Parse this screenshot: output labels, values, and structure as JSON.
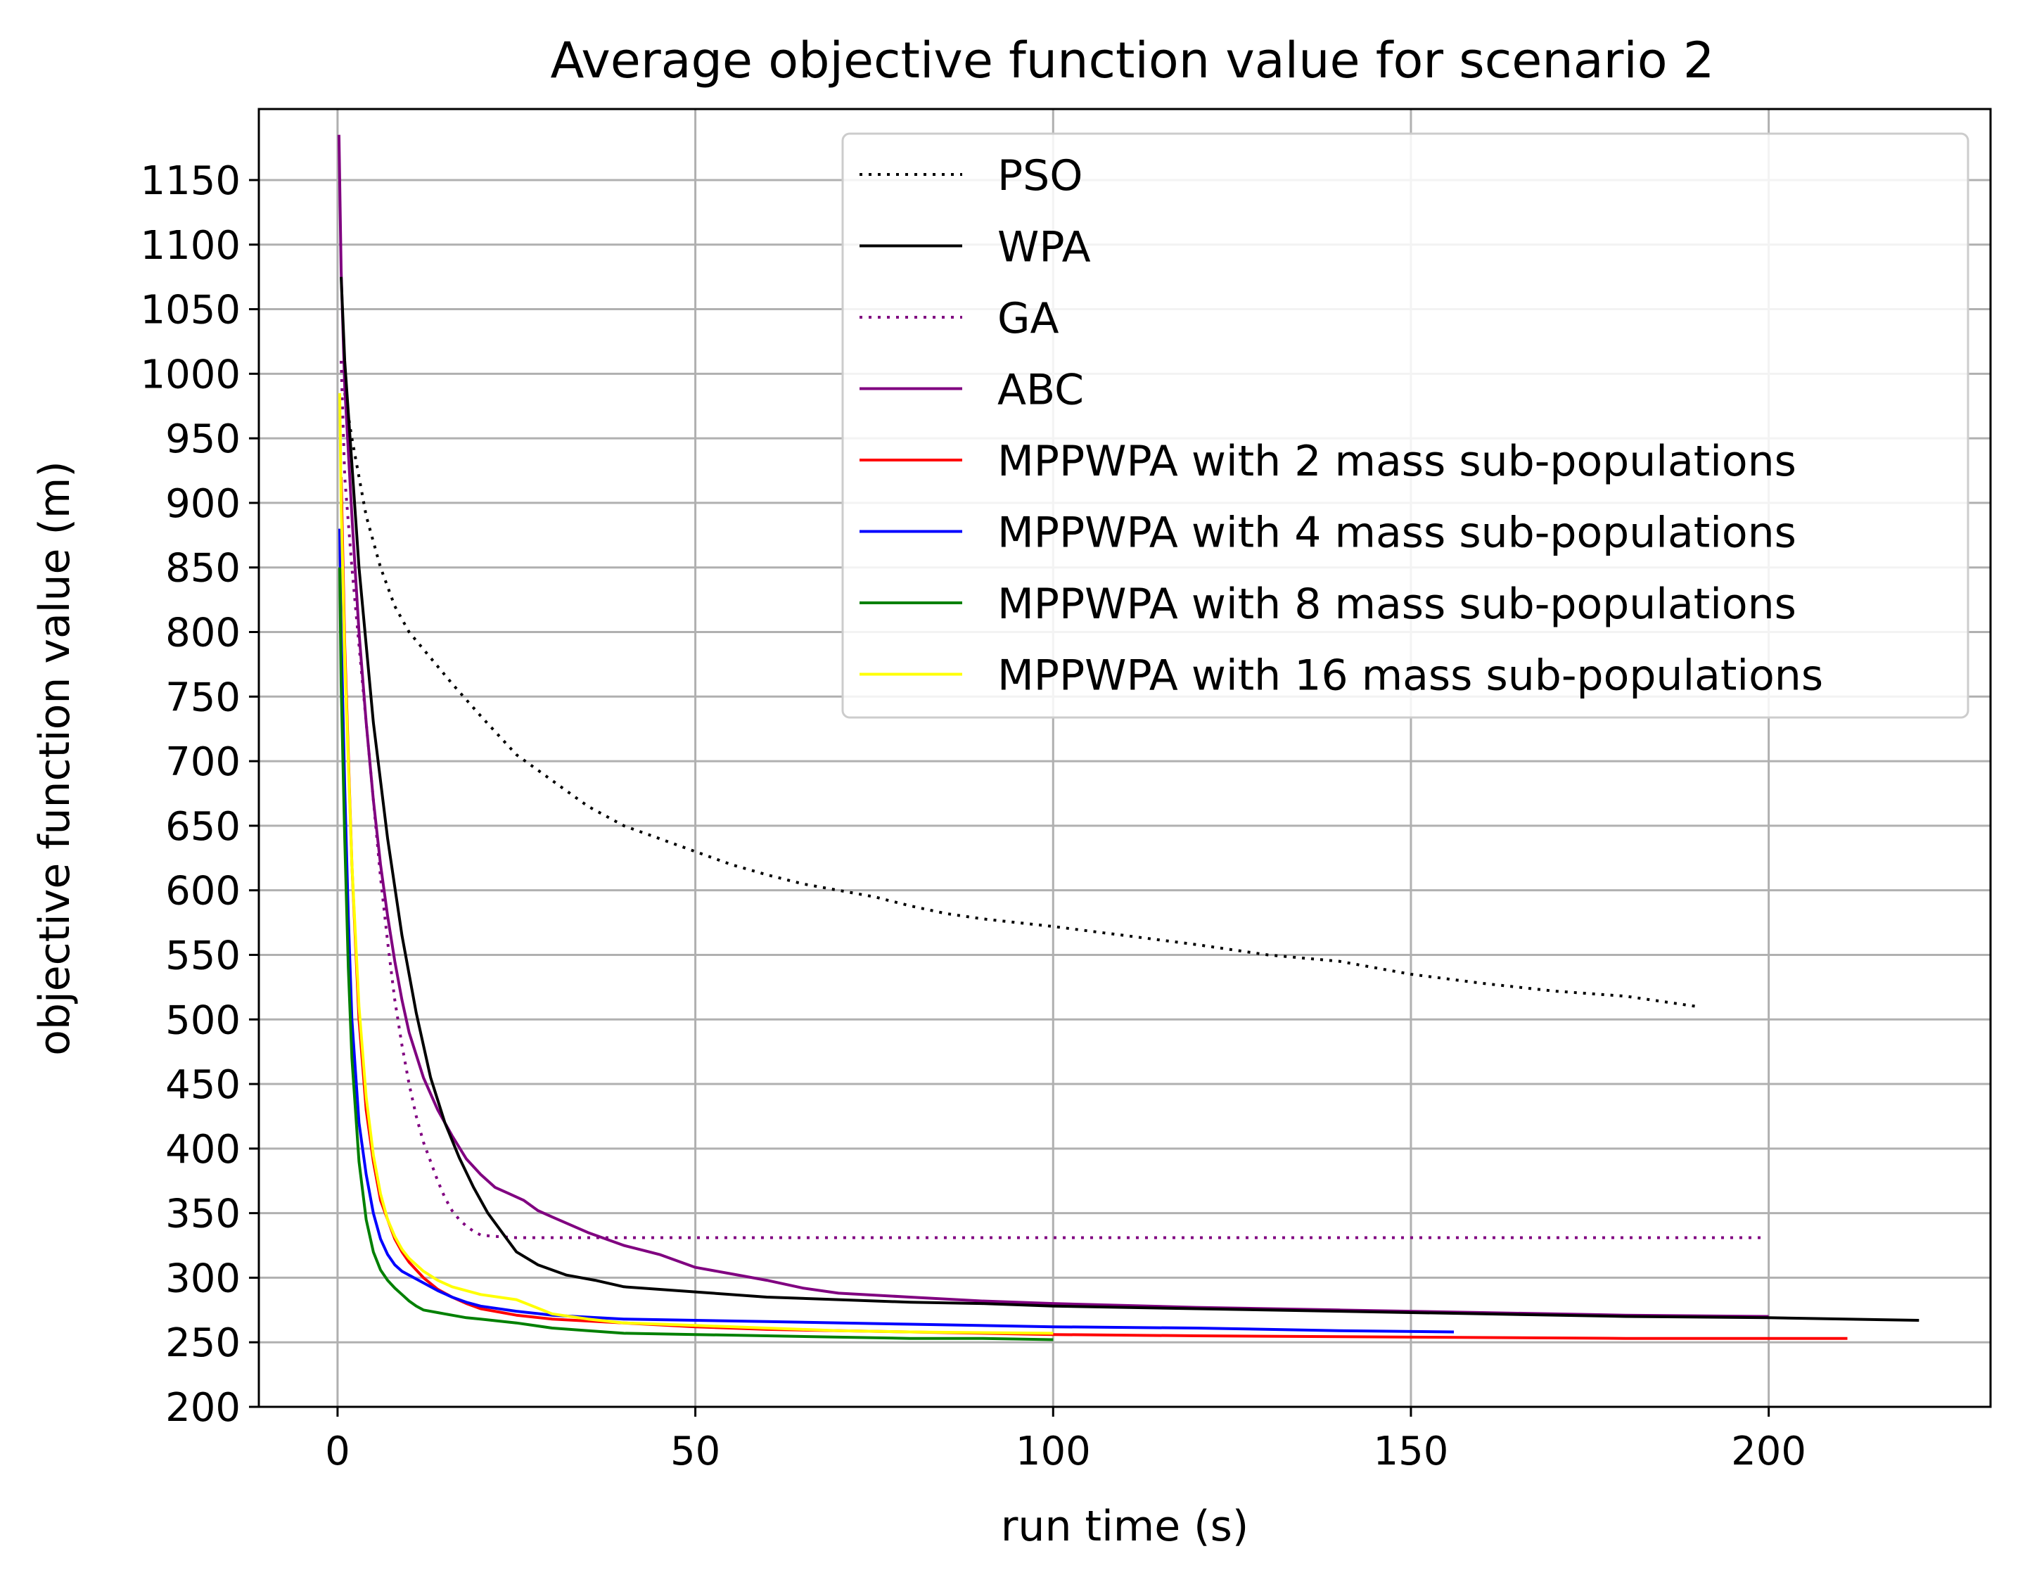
{
  "chart_data": {
    "type": "line",
    "title": "Average objective function value for scenario 2",
    "xlabel": "run time (s)",
    "ylabel": "objective function value (m)",
    "xlim": [
      -11,
      231
    ],
    "ylim": [
      200,
      1205
    ],
    "grid": true,
    "legend_position": "top-right",
    "x_ticks": [
      0,
      50,
      100,
      150,
      200
    ],
    "y_ticks": [
      200,
      250,
      300,
      350,
      400,
      450,
      500,
      550,
      600,
      650,
      700,
      750,
      800,
      850,
      900,
      950,
      1000,
      1050,
      1100,
      1150
    ],
    "series": [
      {
        "name": "PSO",
        "color": "#000000",
        "style": "dotted",
        "x": [
          1,
          2,
          4,
          6,
          8,
          10,
          13,
          16,
          20,
          25,
          30,
          35,
          40,
          45,
          50,
          55,
          60,
          65,
          70,
          75,
          80,
          85,
          90,
          95,
          100,
          110,
          120,
          130,
          140,
          150,
          160,
          170,
          180,
          190
        ],
        "y": [
          985,
          950,
          890,
          850,
          820,
          800,
          780,
          760,
          735,
          705,
          685,
          665,
          650,
          640,
          630,
          620,
          612,
          605,
          600,
          595,
          588,
          582,
          578,
          575,
          572,
          565,
          558,
          550,
          545,
          535,
          528,
          522,
          518,
          510
        ]
      },
      {
        "name": "WPA",
        "color": "#000000",
        "style": "solid",
        "x": [
          0.5,
          1,
          2,
          3,
          5,
          7,
          9,
          11,
          13,
          15,
          17,
          19,
          21,
          23,
          25,
          28,
          32,
          36,
          40,
          50,
          60,
          70,
          80,
          90,
          100,
          120,
          140,
          160,
          180,
          200,
          221
        ],
        "y": [
          1075,
          1010,
          930,
          850,
          730,
          640,
          565,
          505,
          455,
          420,
          393,
          370,
          350,
          335,
          320,
          310,
          302,
          298,
          293,
          289,
          285,
          283,
          281,
          280,
          278,
          276,
          274,
          272,
          270,
          269,
          267
        ]
      },
      {
        "name": "GA",
        "color": "#800080",
        "style": "dotted",
        "x": [
          0.5,
          1,
          2,
          3,
          4,
          5,
          6,
          7,
          8,
          9,
          10,
          11,
          12,
          13,
          14,
          15,
          16,
          17,
          18,
          19,
          20,
          22,
          25,
          30,
          40,
          60,
          100,
          150,
          199
        ],
        "y": [
          1010,
          920,
          850,
          790,
          730,
          670,
          610,
          560,
          515,
          480,
          450,
          425,
          405,
          390,
          375,
          362,
          352,
          345,
          340,
          336,
          333,
          332,
          331,
          331,
          331,
          331,
          331,
          331,
          331
        ]
      },
      {
        "name": "ABC",
        "color": "#800080",
        "style": "solid",
        "x": [
          0.2,
          0.5,
          1,
          2,
          3,
          4,
          5,
          6,
          7,
          8,
          9,
          10,
          12,
          14,
          16,
          18,
          20,
          22,
          24,
          26,
          28,
          30,
          35,
          40,
          45,
          50,
          55,
          60,
          65,
          70,
          80,
          90,
          100,
          120,
          140,
          160,
          180,
          200
        ],
        "y": [
          1185,
          1080,
          990,
          890,
          800,
          730,
          670,
          620,
          580,
          545,
          515,
          490,
          455,
          430,
          410,
          392,
          380,
          370,
          365,
          360,
          352,
          347,
          335,
          325,
          318,
          308,
          303,
          298,
          292,
          288,
          285,
          282,
          280,
          277,
          275,
          273,
          271,
          270
        ]
      },
      {
        "name": "MPPWPA with 2 mass sub-populations",
        "color": "#ff0000",
        "style": "solid",
        "x": [
          0.5,
          1,
          2,
          3,
          4,
          5,
          6,
          7,
          8,
          9,
          10,
          12,
          14,
          16,
          18,
          20,
          25,
          30,
          40,
          50,
          60,
          80,
          100,
          120,
          150,
          180,
          211
        ],
        "y": [
          920,
          790,
          620,
          500,
          430,
          390,
          360,
          345,
          330,
          320,
          312,
          300,
          291,
          285,
          280,
          276,
          271,
          268,
          265,
          262,
          260,
          258,
          256,
          255,
          254,
          253,
          253
        ]
      },
      {
        "name": "MPPWPA with 4 mass sub-populations",
        "color": "#0000ff",
        "style": "solid",
        "x": [
          0.3,
          0.5,
          1,
          1.5,
          2,
          3,
          4,
          5,
          6,
          7,
          8,
          9,
          10,
          12,
          14,
          16,
          18,
          20,
          25,
          30,
          40,
          50,
          60,
          80,
          100,
          120,
          140,
          156
        ],
        "y": [
          880,
          800,
          680,
          580,
          500,
          420,
          380,
          350,
          330,
          318,
          310,
          305,
          302,
          296,
          290,
          285,
          281,
          278,
          274,
          271,
          268,
          267,
          266,
          264,
          262,
          261,
          259,
          258
        ]
      },
      {
        "name": "MPPWPA with 8 mass sub-populations",
        "color": "#008000",
        "style": "solid",
        "x": [
          0.3,
          0.5,
          1,
          1.5,
          2,
          3,
          4,
          5,
          6,
          7,
          8,
          9,
          10,
          11,
          12,
          14,
          16,
          18,
          20,
          25,
          30,
          35,
          40,
          50,
          60,
          70,
          80,
          90,
          100
        ],
        "y": [
          850,
          760,
          640,
          540,
          470,
          390,
          345,
          320,
          306,
          298,
          292,
          287,
          282,
          278,
          275,
          273,
          271,
          269,
          268,
          265,
          261,
          259,
          257,
          256,
          255,
          254,
          253,
          253,
          252
        ]
      },
      {
        "name": "MPPWPA with 16 mass sub-populations",
        "color": "#ffff00",
        "style": "solid",
        "x": [
          0.3,
          0.5,
          1,
          2,
          3,
          4,
          5,
          6,
          7,
          8,
          9,
          10,
          12,
          14,
          16,
          18,
          20,
          25,
          30,
          35,
          40,
          50,
          60,
          70,
          80,
          100
        ],
        "y": [
          985,
          900,
          780,
          620,
          510,
          440,
          395,
          365,
          345,
          332,
          322,
          315,
          305,
          298,
          293,
          290,
          287,
          283,
          272,
          268,
          265,
          263,
          261,
          259,
          258,
          257
        ]
      }
    ]
  }
}
